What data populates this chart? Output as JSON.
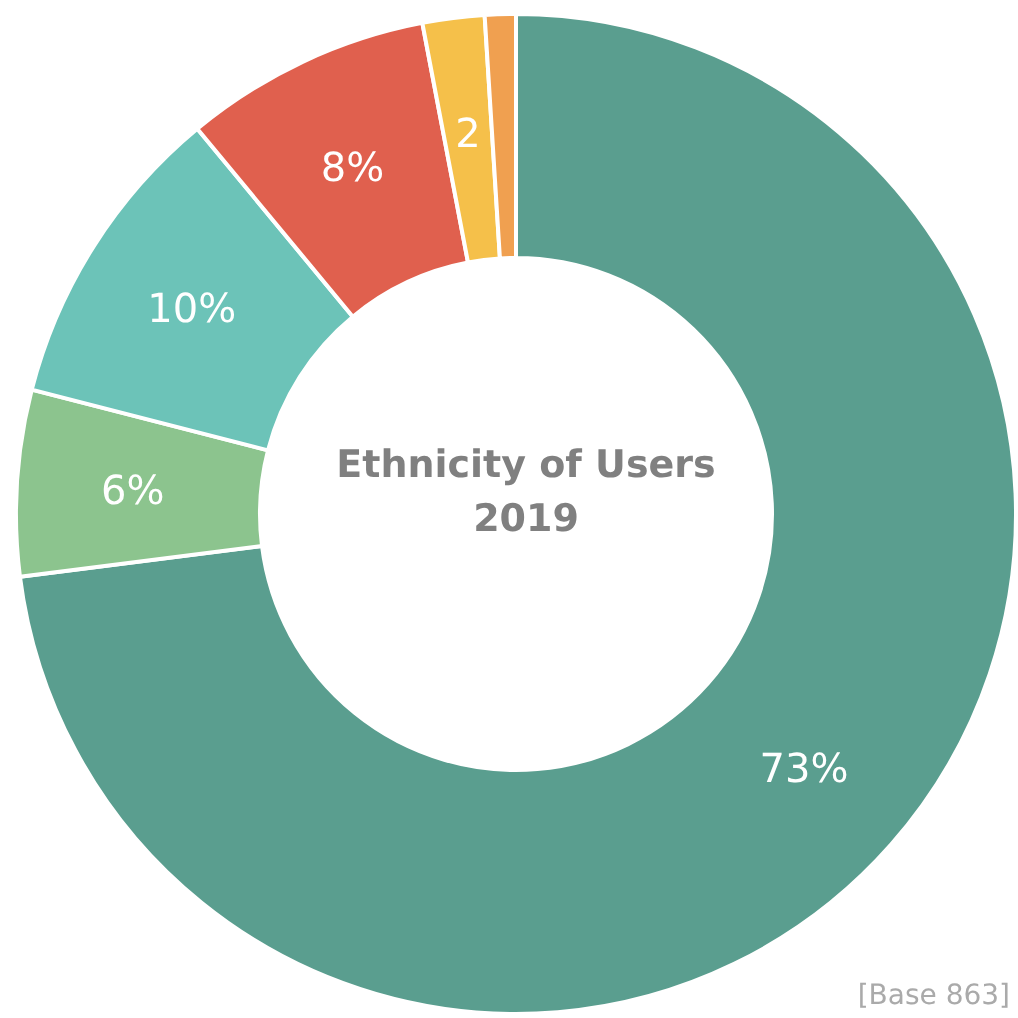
{
  "chart_data": {
    "type": "donut",
    "title": "Ethnicity of Users",
    "subtitle": "2019",
    "categories": [
      null,
      null,
      null,
      null,
      null,
      null
    ],
    "values": [
      73,
      6,
      10,
      8,
      2,
      1
    ],
    "value_labels": [
      "73%",
      "6%",
      "10%",
      "8%",
      "2",
      null
    ],
    "colors": [
      "#5a9e8f",
      "#8cc48e",
      "#6cc3b8",
      "#e0604e",
      "#f5c04a",
      "#f0a050"
    ],
    "annotations": [
      "[Base 863]"
    ]
  }
}
